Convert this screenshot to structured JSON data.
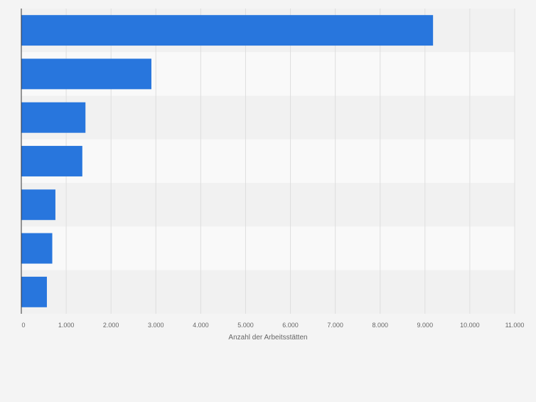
{
  "chart_data": {
    "type": "bar",
    "orientation": "horizontal",
    "categories": [
      "",
      "",
      "",
      "",
      "",
      "",
      ""
    ],
    "values": [
      9180,
      2900,
      1430,
      1360,
      760,
      690,
      570
    ],
    "title": "",
    "xlabel": "Anzahl der Arbeitsstätten",
    "ylabel": "",
    "xlim": [
      0,
      11000
    ],
    "ticks": [
      0,
      1000,
      2000,
      3000,
      4000,
      5000,
      6000,
      7000,
      8000,
      9000,
      10000,
      11000
    ],
    "tick_labels": [
      "0",
      "1.000",
      "2.000",
      "3.000",
      "4.000",
      "5.000",
      "6.000",
      "7.000",
      "8.000",
      "9.000",
      "10.000",
      "11.000"
    ],
    "grid": true,
    "legend": "none",
    "colors": {
      "bar": "#2876dd",
      "band_dark": "#f1f1f1",
      "band_light": "#f9f9f9",
      "grid": "#dedede",
      "axis": "#333333",
      "tick_text": "#666666",
      "background": "#f4f4f4"
    }
  }
}
